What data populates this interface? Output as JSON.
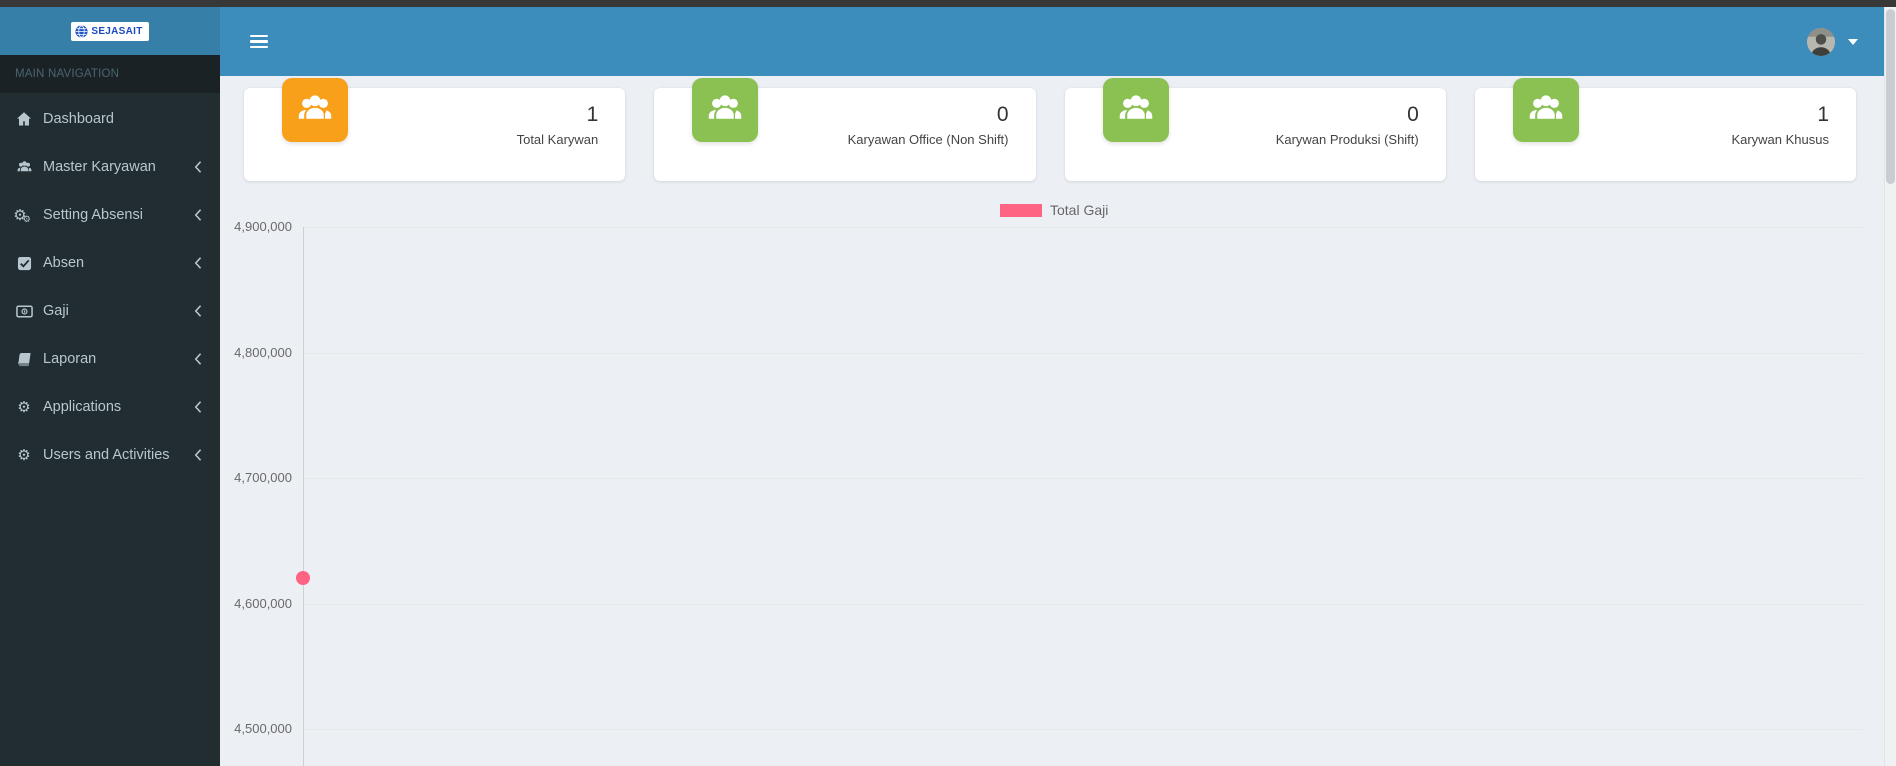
{
  "brand": {
    "logo_text": "SEJASAIT"
  },
  "sidebar": {
    "header": "MAIN NAVIGATION",
    "items": [
      {
        "label": "Dashboard",
        "icon": "home-icon",
        "has_submenu": false
      },
      {
        "label": "Master Karyawan",
        "icon": "users-icon",
        "has_submenu": true
      },
      {
        "label": "Setting Absensi",
        "icon": "cogs-icon",
        "has_submenu": true
      },
      {
        "label": "Absen",
        "icon": "check-square-icon",
        "has_submenu": true
      },
      {
        "label": "Gaji",
        "icon": "money-icon",
        "has_submenu": true
      },
      {
        "label": "Laporan",
        "icon": "book-icon",
        "has_submenu": true
      },
      {
        "label": "Applications",
        "icon": "gear-icon",
        "has_submenu": true
      },
      {
        "label": "Users and Activities",
        "icon": "gear-icon",
        "has_submenu": true
      }
    ]
  },
  "topbar": {
    "icons": [
      "hamburger-icon",
      "avatar",
      "caret-down-icon"
    ]
  },
  "cards": [
    {
      "value": "1",
      "label": "Total Karywan",
      "icon": "users-group-icon",
      "icon_color": "#f9a01b"
    },
    {
      "value": "0",
      "label": "Karyawan Office (Non Shift)",
      "icon": "users-group-icon",
      "icon_color": "#8bc052"
    },
    {
      "value": "0",
      "label": "Karywan Produksi (Shift)",
      "icon": "users-group-icon",
      "icon_color": "#8bc052"
    },
    {
      "value": "1",
      "label": "Karywan Khusus",
      "icon": "users-group-icon",
      "icon_color": "#8bc052"
    }
  ],
  "chart_data": {
    "type": "line",
    "title": "",
    "xlabel": "",
    "ylabel": "",
    "legend": {
      "label": "Total Gaji",
      "color": "#ff6384",
      "position": "top-center"
    },
    "y_axis": {
      "tick_labels": [
        "4,900,000",
        "4,800,000",
        "4,700,000",
        "4,600,000",
        "4,500,000"
      ],
      "tick_values": [
        4900000,
        4800000,
        4700000,
        4600000,
        4500000
      ],
      "visible_range": [
        4500000,
        4900000
      ],
      "grid": true
    },
    "x_axis": {
      "tick_labels_visible": []
    },
    "series": [
      {
        "name": "Total Gaji",
        "color": "#ff6384",
        "points": [
          {
            "x_index": 0,
            "value": 4620000
          }
        ]
      }
    ]
  },
  "colors": {
    "navbar": "#3c8dbc",
    "logo_bg": "#367fa9",
    "sidebar_bg": "#222d32",
    "content_bg": "#ecf0f5",
    "card_orange": "#f9a01b",
    "card_green": "#8bc052",
    "series_pink": "#ff6384"
  }
}
